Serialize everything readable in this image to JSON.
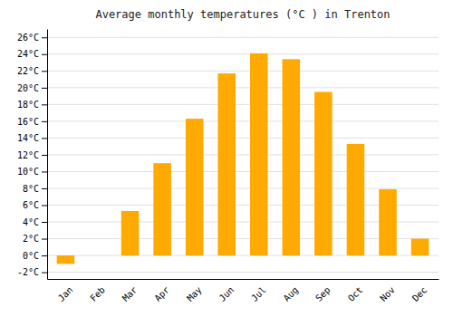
{
  "chart_data": {
    "type": "bar",
    "title": "Average monthly temperatures (°C ) in Trenton",
    "categories": [
      "Jan",
      "Feb",
      "Mar",
      "Apr",
      "May",
      "Jun",
      "Jul",
      "Aug",
      "Sep",
      "Oct",
      "Nov",
      "Dec"
    ],
    "values": [
      -1.0,
      0.0,
      5.3,
      11.0,
      16.3,
      21.7,
      24.1,
      23.4,
      19.5,
      13.3,
      7.9,
      2.0
    ],
    "color": "#FFAA00",
    "ylim": [
      -2.8,
      27
    ],
    "yticks": [
      {
        "value": -2,
        "label": "-2°C"
      },
      {
        "value": 0,
        "label": "0°C"
      },
      {
        "value": 2,
        "label": "2°C"
      },
      {
        "value": 4,
        "label": "4°C"
      },
      {
        "value": 6,
        "label": "6°C"
      },
      {
        "value": 8,
        "label": "8°C"
      },
      {
        "value": 10,
        "label": "10°C"
      },
      {
        "value": 12,
        "label": "12°C"
      },
      {
        "value": 14,
        "label": "14°C"
      },
      {
        "value": 16,
        "label": "16°C"
      },
      {
        "value": 18,
        "label": "18°C"
      },
      {
        "value": 20,
        "label": "20°C"
      },
      {
        "value": 22,
        "label": "22°C"
      },
      {
        "value": 24,
        "label": "24°C"
      },
      {
        "value": 26,
        "label": "26°C"
      }
    ],
    "grid": true
  }
}
